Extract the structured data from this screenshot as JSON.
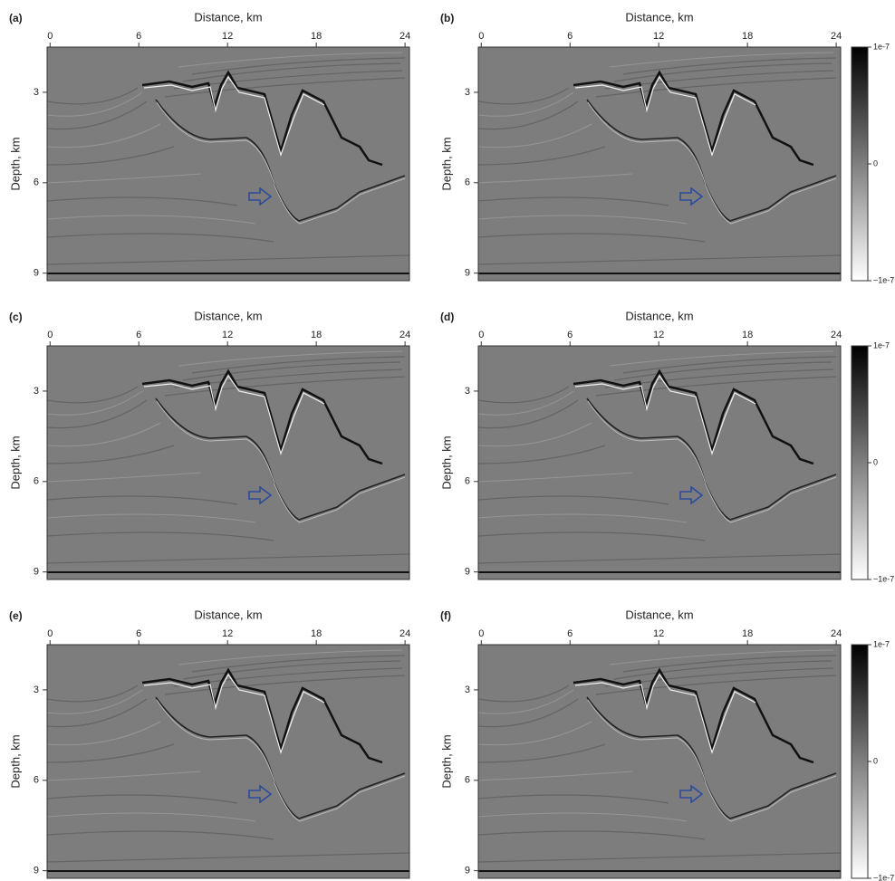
{
  "chart_data": [
    {
      "type": "image",
      "panel_label": "(a)",
      "x_label": "Distance, km",
      "y_label": "Depth, km",
      "xlim": [
        -0.2,
        24.3
      ],
      "ylim": [
        1.5,
        9.25
      ],
      "xticks": [
        0,
        6,
        12,
        18,
        24
      ],
      "yticks": [
        3,
        6,
        9
      ]
    },
    {
      "type": "image",
      "panel_label": "(b)",
      "x_label": "Distance, km",
      "y_label": "Depth, km",
      "xlim": [
        -0.2,
        24.3
      ],
      "ylim": [
        1.5,
        9.25
      ],
      "xticks": [
        0,
        6,
        12,
        18,
        24
      ],
      "yticks": [
        3,
        6,
        9
      ],
      "colorbar": {
        "lim": [
          -1e-07,
          1e-07
        ],
        "ticks": [
          {
            "value": 1e-07,
            "label": "1e-7"
          },
          0,
          {
            "value": -1e-07,
            "label": "−1e-7"
          }
        ]
      }
    },
    {
      "type": "image",
      "panel_label": "(c)",
      "x_label": "Distance, km",
      "y_label": "Depth, km",
      "xlim": [
        -0.2,
        24.3
      ],
      "ylim": [
        1.5,
        9.25
      ],
      "xticks": [
        0,
        6,
        12,
        18,
        24
      ],
      "yticks": [
        3,
        6,
        9
      ]
    },
    {
      "type": "image",
      "panel_label": "(d)",
      "x_label": "Distance, km",
      "y_label": "Depth, km",
      "xlim": [
        -0.2,
        24.3
      ],
      "ylim": [
        1.5,
        9.25
      ],
      "xticks": [
        0,
        6,
        12,
        18,
        24
      ],
      "yticks": [
        3,
        6,
        9
      ],
      "colorbar": {
        "lim": [
          -1e-07,
          1e-07
        ],
        "ticks": [
          {
            "value": 1e-07,
            "label": "1e-7"
          },
          0,
          {
            "value": -1e-07,
            "label": "−1e-7"
          }
        ]
      }
    },
    {
      "type": "image",
      "panel_label": "(e)",
      "x_label": "Distance, km",
      "y_label": "Depth, km",
      "xlim": [
        -0.2,
        24.3
      ],
      "ylim": [
        1.5,
        9.25
      ],
      "xticks": [
        0,
        6,
        12,
        18,
        24
      ],
      "yticks": [
        3,
        6,
        9
      ]
    },
    {
      "type": "image",
      "panel_label": "(f)",
      "x_label": "Distance, km",
      "y_label": "Depth, km",
      "xlim": [
        -0.2,
        24.3
      ],
      "ylim": [
        1.5,
        9.25
      ],
      "xticks": [
        0,
        6,
        12,
        18,
        24
      ],
      "yticks": [
        3,
        6,
        9
      ],
      "colorbar": {
        "lim": [
          -1e-07,
          1e-07
        ],
        "ticks": [
          {
            "value": 1e-07,
            "label": "1e-7"
          },
          0,
          {
            "value": -1e-07,
            "label": "−1e-7"
          }
        ]
      }
    }
  ]
}
